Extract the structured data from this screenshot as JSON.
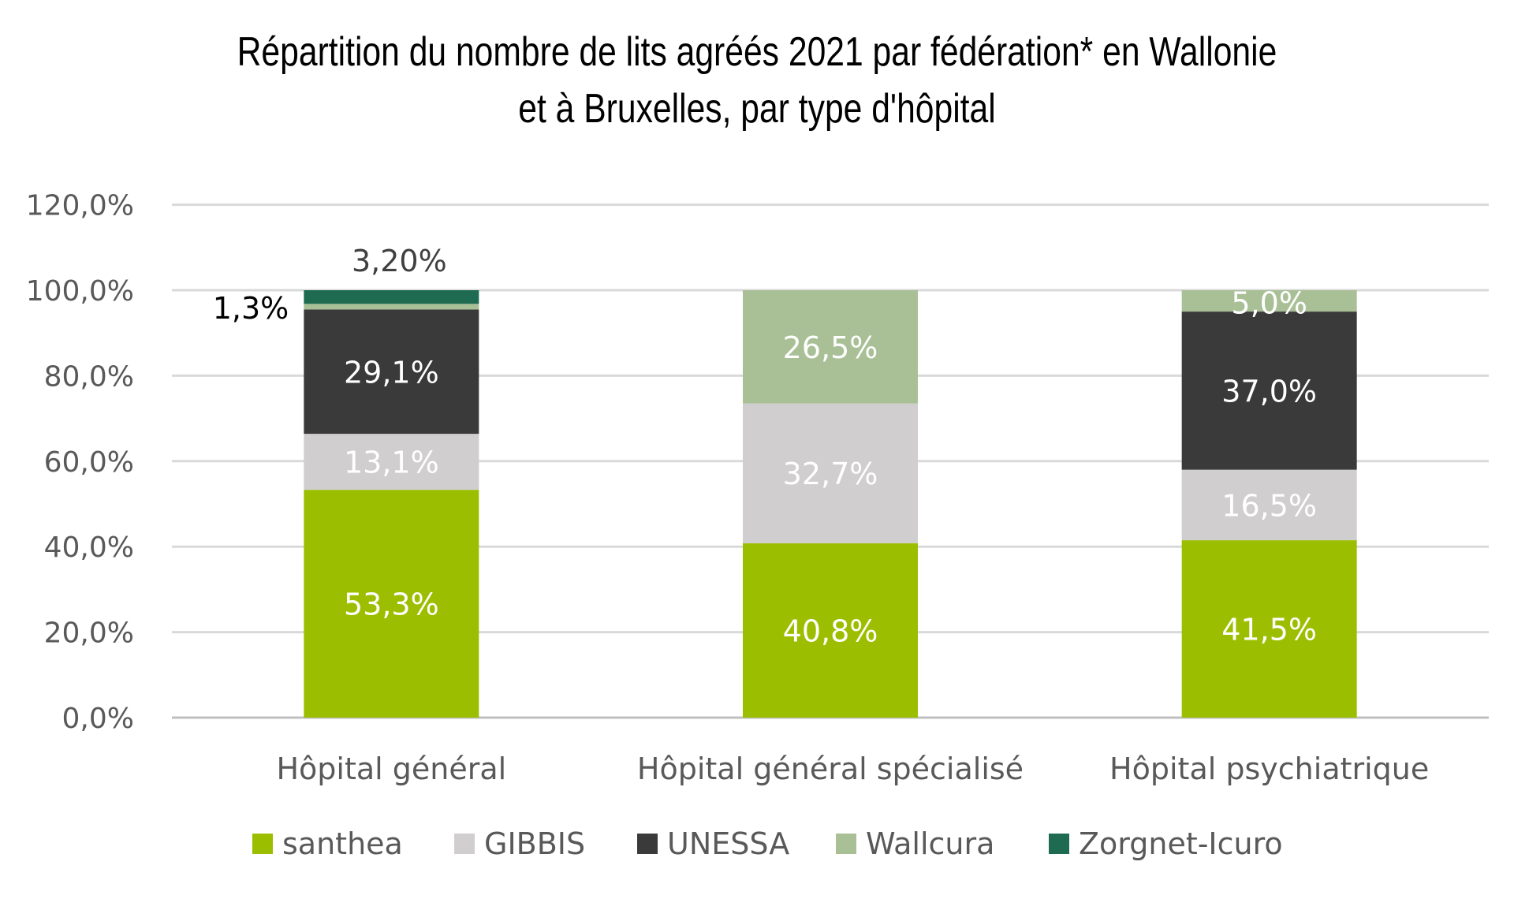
{
  "chart_data": {
    "type": "bar",
    "stacked": true,
    "title_lines": [
      "Répartition du nombre de lits agréés 2021 par fédération* en Wallonie",
      "et à Bruxelles, par type d'hôpital"
    ],
    "xlabel": "",
    "ylabel": "",
    "ylim": [
      0,
      120
    ],
    "yticks": [
      "0,0%",
      "20,0%",
      "40,0%",
      "60,0%",
      "80,0%",
      "100,0%",
      "120,0%"
    ],
    "grid": true,
    "legend_position": "bottom",
    "categories": [
      "Hôpital général",
      "Hôpital général spécialisé",
      "Hôpital psychiatrique"
    ],
    "series": [
      {
        "name": "santhea",
        "color": "#9bbf00",
        "values": [
          53.3,
          40.8,
          41.5
        ],
        "labels": [
          "53,3%",
          "40,8%",
          "41,5%"
        ]
      },
      {
        "name": "GIBBIS",
        "color": "#d0cece",
        "values": [
          13.1,
          32.7,
          16.5
        ],
        "labels": [
          "13,1%",
          "32,7%",
          "16,5%"
        ]
      },
      {
        "name": "UNESSA",
        "color": "#3a3a3a",
        "values": [
          29.1,
          0,
          37.0
        ],
        "labels": [
          "29,1%",
          "",
          "37,0%"
        ]
      },
      {
        "name": "Wallcura",
        "color": "#a9c097",
        "values": [
          1.3,
          26.5,
          5.0
        ],
        "labels": [
          "1,3%",
          "26,5%",
          "5,0%"
        ]
      },
      {
        "name": "Zorgnet-Icuro",
        "color": "#1e6b52",
        "values": [
          3.2,
          0,
          0
        ],
        "labels": [
          "3,20%",
          "",
          ""
        ]
      }
    ]
  }
}
